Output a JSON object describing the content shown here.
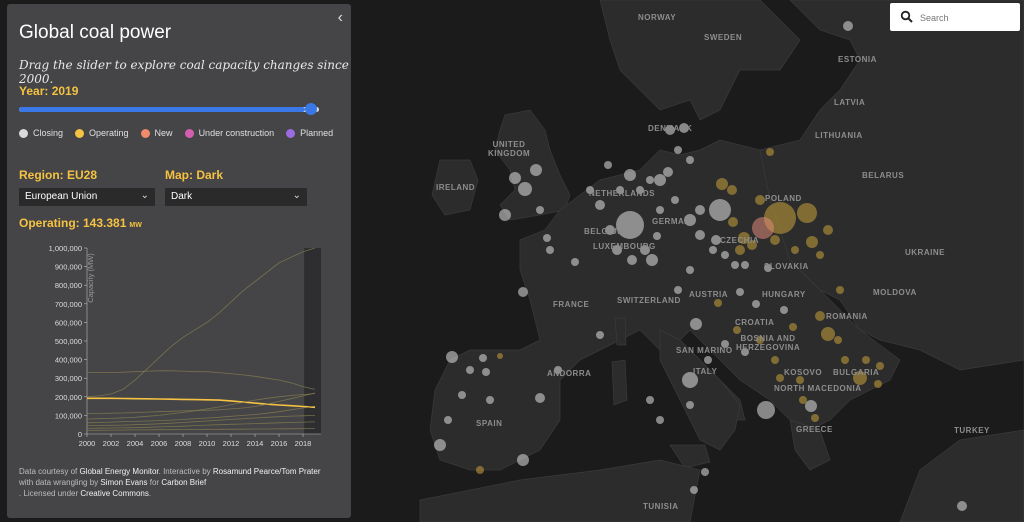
{
  "panel": {
    "collapse_icon": "chevron-left-icon",
    "title": "Global coal power",
    "subtitle": "Drag the slider to explore coal capacity changes since 2000.",
    "year_label": "Year: 2019",
    "slider_value": 2019,
    "slider_min": 2000,
    "slider_max": 2019,
    "legend": [
      {
        "label": "Closing",
        "color": "#d9d9d9"
      },
      {
        "label": "Operating",
        "color": "#f5c242"
      },
      {
        "label": "New",
        "color": "#f08a6b"
      },
      {
        "label": "Under construction",
        "color": "#d45fb0"
      },
      {
        "label": "Planned",
        "color": "#9b6be0"
      }
    ],
    "region_label": "Region: EU28",
    "region_value": "European Union",
    "map_label": "Map: Dark",
    "map_value": "Dark",
    "operating_label": "Operating: 143.381",
    "operating_unit": "MW",
    "credit_text_1": "Data courtesy of ",
    "credit_link_1": "Global Energy Monitor",
    "credit_text_2": ". Interactive by ",
    "credit_link_2": "Rosamund Pearce/Tom Prater",
    "credit_text_3": " with data wrangling by ",
    "credit_link_3": "Simon Evans",
    "credit_text_4": " for ",
    "credit_link_4": "Carbon Brief",
    "credit_text_5": ". Licensed under ",
    "credit_link_5": "Creative Commons",
    "credit_text_6": "."
  },
  "chart_data": {
    "type": "line",
    "ylabel": "Capacity (MW)",
    "ylim": [
      0,
      1000000
    ],
    "xlim": [
      2000,
      2019
    ],
    "y_ticks": [
      "0",
      "100,000",
      "200,000",
      "300,000",
      "400,000",
      "500,000",
      "600,000",
      "700,000",
      "800,000",
      "900,000",
      "1,000,000"
    ],
    "x_ticks": [
      "2000",
      "2002",
      "2004",
      "2006",
      "2008",
      "2010",
      "2012",
      "2014",
      "2016",
      "2018"
    ],
    "highlight_color": "#f5c242",
    "x": [
      2000,
      2001,
      2002,
      2003,
      2004,
      2005,
      2006,
      2007,
      2008,
      2009,
      2010,
      2011,
      2012,
      2013,
      2014,
      2015,
      2016,
      2017,
      2018,
      2019
    ],
    "series": [
      {
        "highlight": false,
        "values": [
          200000,
          205000,
          215000,
          240000,
          290000,
          350000,
          410000,
          470000,
          520000,
          560000,
          600000,
          650000,
          710000,
          770000,
          820000,
          870000,
          920000,
          950000,
          980000,
          1000000
        ]
      },
      {
        "highlight": false,
        "values": [
          330000,
          330000,
          330000,
          332000,
          335000,
          338000,
          340000,
          340000,
          338000,
          335000,
          335000,
          330000,
          325000,
          318000,
          310000,
          300000,
          290000,
          275000,
          255000,
          240000
        ]
      },
      {
        "highlight": true,
        "values": [
          192000,
          192000,
          192000,
          191000,
          190000,
          189000,
          188000,
          187000,
          186000,
          185000,
          184000,
          182000,
          178000,
          172000,
          166000,
          160000,
          156000,
          152000,
          148000,
          143381
        ]
      },
      {
        "highlight": false,
        "values": [
          80000,
          82000,
          84000,
          87000,
          90000,
          95000,
          100000,
          108000,
          116000,
          125000,
          135000,
          145000,
          158000,
          170000,
          182000,
          192000,
          200000,
          207000,
          212000,
          218000
        ]
      },
      {
        "highlight": false,
        "values": [
          110000,
          111000,
          112000,
          113000,
          115000,
          118000,
          120000,
          122000,
          124000,
          126000,
          128000,
          130000,
          135000,
          140000,
          148000,
          160000,
          175000,
          190000,
          205000,
          220000
        ]
      },
      {
        "highlight": false,
        "values": [
          60000,
          62000,
          64000,
          66000,
          68000,
          70000,
          72000,
          75000,
          78000,
          82000,
          86000,
          90000,
          95000,
          100000,
          105000,
          112000,
          120000,
          130000,
          140000,
          150000
        ]
      },
      {
        "highlight": false,
        "values": [
          45000,
          46000,
          47000,
          48000,
          50000,
          52000,
          55000,
          58000,
          62000,
          66000,
          70000,
          74000,
          78000,
          82000,
          86000,
          90000,
          93000,
          96000,
          98000,
          100000
        ]
      },
      {
        "highlight": false,
        "values": [
          30000,
          31000,
          32000,
          33000,
          34000,
          36000,
          38000,
          40000,
          42000,
          45000,
          48000,
          50000,
          52000,
          54000,
          56000,
          58000,
          60000,
          62000,
          64000,
          65000
        ]
      },
      {
        "highlight": false,
        "values": [
          20000,
          20000,
          21000,
          21000,
          22000,
          22000,
          23000,
          23000,
          24000,
          24000,
          25000,
          25000,
          26000,
          26000,
          27000,
          27000,
          28000,
          28000,
          29000,
          30000
        ]
      }
    ]
  },
  "search": {
    "placeholder": "Search",
    "icon": "search-icon"
  },
  "map": {
    "labels": [
      "NORWAY",
      "SWEDEN",
      "ESTONIA",
      "LATVIA",
      "LITHUANIA",
      "DENMARK",
      "UNITED KINGDOM",
      "IRELAND",
      "BELARUS",
      "NETHERLANDS",
      "GERMANY",
      "POLAND",
      "BELGIUM",
      "LUXEMBOURG",
      "CZECHIA",
      "UKRAINE",
      "SLOVAKIA",
      "FRANCE",
      "SWITZERLAND",
      "AUSTRIA",
      "HUNGARY",
      "MOLDOVA",
      "ROMANIA",
      "CROATIA",
      "BOSNIA AND HERZEGOVINA",
      "SAN MARINO",
      "ANDORRA",
      "ITALY",
      "KOSOVO",
      "BULGARIA",
      "NORTH MACEDONIA",
      "SPAIN",
      "GREECE",
      "TURKEY",
      "TUNISIA"
    ]
  }
}
